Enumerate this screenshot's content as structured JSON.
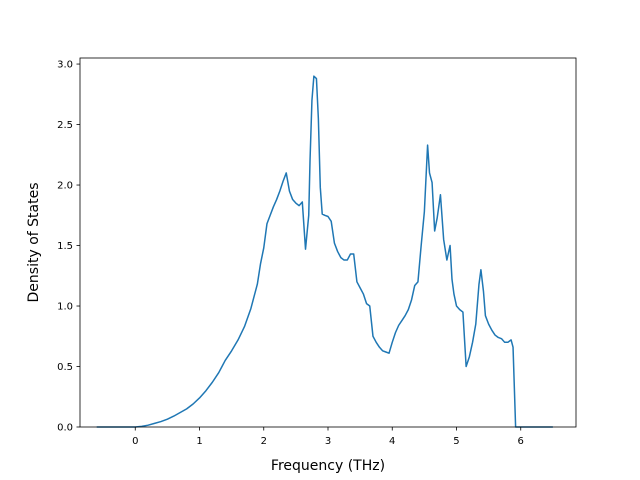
{
  "chart_data": {
    "type": "line",
    "title": "",
    "xlabel": "Frequency (THz)",
    "ylabel": "Density of States",
    "xlim": [
      -0.86,
      6.86
    ],
    "ylim": [
      0.0,
      3.05
    ],
    "xticks": [
      0,
      1,
      2,
      3,
      4,
      5,
      6
    ],
    "xtick_labels": [
      "0",
      "1",
      "2",
      "3",
      "4",
      "5",
      "6"
    ],
    "yticks": [
      0.0,
      0.5,
      1.0,
      1.5,
      2.0,
      2.5,
      3.0
    ],
    "ytick_labels": [
      "0.0",
      "0.5",
      "1.0",
      "1.5",
      "2.0",
      "2.5",
      "3.0"
    ],
    "grid": false,
    "legend": "none",
    "color": "#1f77b4",
    "series": [
      {
        "x": [
          -0.6,
          0.0,
          0.1,
          0.2,
          0.3,
          0.4,
          0.5,
          0.6,
          0.7,
          0.8,
          0.9,
          1.0,
          1.1,
          1.2,
          1.3,
          1.35,
          1.4,
          1.5,
          1.6,
          1.7,
          1.8,
          1.85,
          1.9,
          1.95,
          2.0,
          2.05,
          2.1,
          2.15,
          2.2,
          2.25,
          2.3,
          2.35,
          2.4,
          2.45,
          2.5,
          2.55,
          2.6,
          2.65,
          2.7,
          2.72,
          2.75,
          2.78,
          2.82,
          2.85,
          2.88,
          2.91,
          2.95,
          3.0,
          3.05,
          3.1,
          3.15,
          3.2,
          3.25,
          3.3,
          3.35,
          3.4,
          3.45,
          3.5,
          3.55,
          3.6,
          3.65,
          3.7,
          3.75,
          3.8,
          3.85,
          3.9,
          3.95,
          4.0,
          4.05,
          4.1,
          4.15,
          4.2,
          4.25,
          4.3,
          4.35,
          4.4,
          4.45,
          4.5,
          4.55,
          4.58,
          4.62,
          4.66,
          4.7,
          4.75,
          4.8,
          4.85,
          4.9,
          4.93,
          4.96,
          5.0,
          5.05,
          5.1,
          5.15,
          5.2,
          5.25,
          5.3,
          5.35,
          5.38,
          5.42,
          5.45,
          5.5,
          5.55,
          5.6,
          5.65,
          5.7,
          5.75,
          5.8,
          5.85,
          5.88,
          5.92,
          5.95,
          6.0,
          6.5
        ],
        "y": [
          0.0,
          0.0,
          0.005,
          0.015,
          0.03,
          0.045,
          0.065,
          0.09,
          0.12,
          0.15,
          0.19,
          0.24,
          0.3,
          0.37,
          0.45,
          0.5,
          0.55,
          0.63,
          0.72,
          0.83,
          0.98,
          1.08,
          1.18,
          1.35,
          1.48,
          1.68,
          1.75,
          1.82,
          1.88,
          1.95,
          2.03,
          2.1,
          1.95,
          1.88,
          1.85,
          1.83,
          1.86,
          1.47,
          1.75,
          2.2,
          2.7,
          2.9,
          2.88,
          2.55,
          1.98,
          1.76,
          1.75,
          1.74,
          1.7,
          1.52,
          1.45,
          1.4,
          1.38,
          1.38,
          1.43,
          1.43,
          1.2,
          1.15,
          1.1,
          1.02,
          1.0,
          0.75,
          0.7,
          0.66,
          0.63,
          0.62,
          0.61,
          0.7,
          0.78,
          0.84,
          0.88,
          0.92,
          0.97,
          1.05,
          1.17,
          1.2,
          1.5,
          1.78,
          2.33,
          2.1,
          2.02,
          1.62,
          1.73,
          1.92,
          1.55,
          1.38,
          1.5,
          1.22,
          1.1,
          1.0,
          0.97,
          0.95,
          0.5,
          0.58,
          0.7,
          0.85,
          1.18,
          1.3,
          1.12,
          0.92,
          0.85,
          0.8,
          0.76,
          0.74,
          0.73,
          0.7,
          0.7,
          0.72,
          0.66,
          0.0,
          0.0,
          0.0,
          0.0
        ]
      }
    ]
  }
}
